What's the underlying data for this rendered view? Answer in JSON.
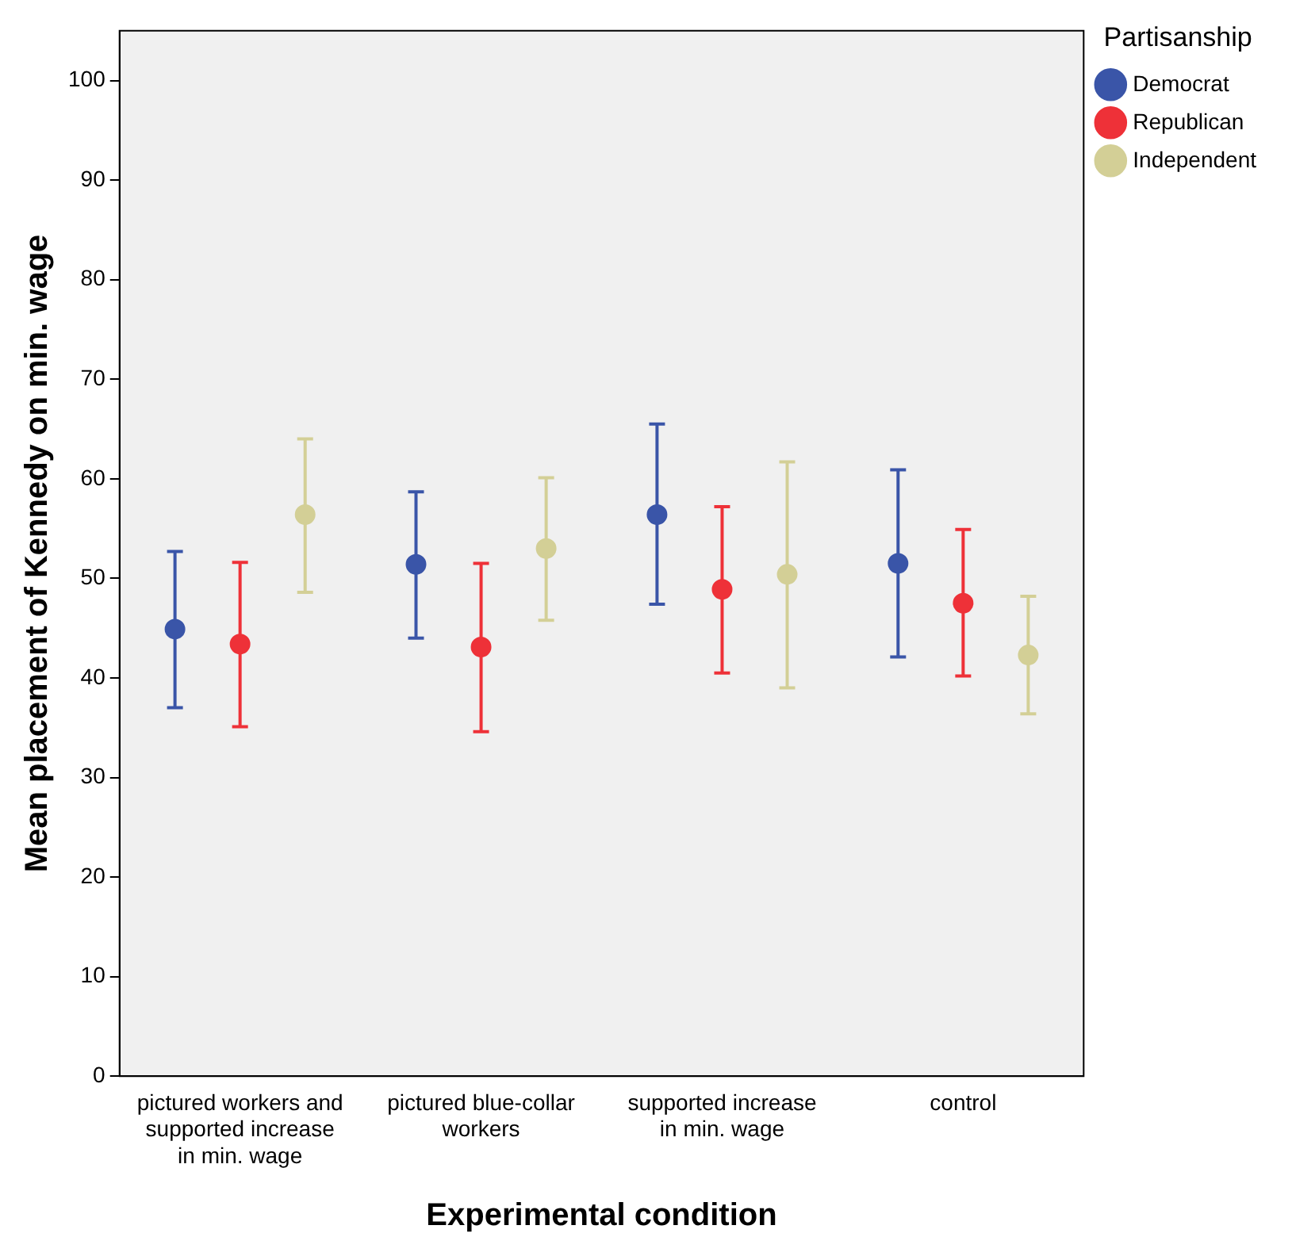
{
  "chart_data": {
    "type": "scatter",
    "xlabel": "Experimental condition",
    "ylabel": "Mean placement of Kennedy on min. wage",
    "legend_title": "Partisanship",
    "categories": [
      "pictured workers and supported increase in min. wage",
      "pictured blue-collar workers",
      "supported increase in min. wage",
      "control"
    ],
    "series": [
      {
        "name": "Democrat",
        "color": "#3a55a8",
        "values": [
          44.9,
          51.4,
          56.4,
          51.5
        ],
        "errors": [
          [
            37.0,
            52.7
          ],
          [
            44.0,
            58.7
          ],
          [
            47.4,
            65.5
          ],
          [
            42.1,
            60.9
          ]
        ]
      },
      {
        "name": "Republican",
        "color": "#ee3138",
        "values": [
          43.4,
          43.1,
          48.9,
          47.5
        ],
        "errors": [
          [
            35.1,
            51.6
          ],
          [
            34.6,
            51.5
          ],
          [
            40.5,
            57.2
          ],
          [
            40.2,
            54.9
          ]
        ]
      },
      {
        "name": "Independent",
        "color": "#d3cf96",
        "values": [
          56.4,
          53.0,
          50.4,
          42.3
        ],
        "errors": [
          [
            48.6,
            64.0
          ],
          [
            45.8,
            60.1
          ],
          [
            39.0,
            61.7
          ],
          [
            36.4,
            48.2
          ]
        ]
      }
    ],
    "ylim": [
      0,
      105
    ],
    "yticks": [
      0,
      10,
      20,
      30,
      40,
      50,
      60,
      70,
      80,
      90,
      100
    ],
    "grid": false,
    "legend": "top right",
    "marker": "circle"
  }
}
